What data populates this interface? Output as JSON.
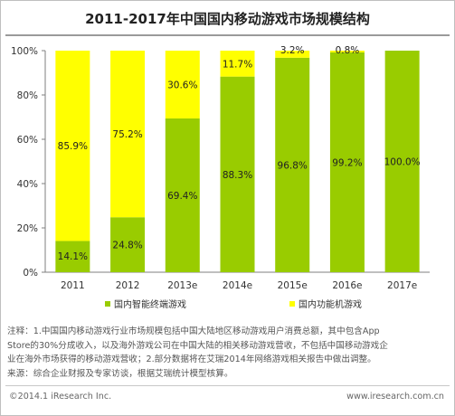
{
  "title": "2011-2017年中国国内移动游戏市场规模结构",
  "chart_data": {
    "type": "bar",
    "stacked": true,
    "categories": [
      "2011",
      "2012",
      "2013e",
      "2014e",
      "2015e",
      "2016e",
      "2017e"
    ],
    "series": [
      {
        "name": "国内智能终端游戏",
        "color": "#99cc00",
        "values": [
          14.1,
          24.8,
          69.4,
          88.3,
          96.8,
          99.2,
          100.0
        ]
      },
      {
        "name": "国内功能机游戏",
        "color": "#ffff00",
        "values": [
          85.9,
          75.2,
          30.6,
          11.7,
          3.2,
          0.8,
          0
        ]
      }
    ],
    "data_labels": {
      "bottom": [
        "14.1%",
        "24.8%",
        "69.4%",
        "88.3%",
        "96.8%",
        "99.2%",
        "100.0%"
      ],
      "top": [
        "85.9%",
        "75.2%",
        "30.6%",
        "11.7%",
        "3.2%",
        "0.8%",
        ""
      ]
    },
    "y_ticks": [
      "0%",
      "20%",
      "40%",
      "60%",
      "80%",
      "100%"
    ],
    "ylim": [
      0,
      100
    ],
    "grid": false,
    "legend_position": "bottom"
  },
  "notes": [
    "注释：1.中国国内移动游戏行业市场规模包括中国大陆地区移动游戏用户消费总额，其中包含App",
    "Store的30%分成收入，以及海外游戏公司在中国大陆的相关移动游戏营收，不包括中国移动游戏企",
    "业在海外市场获得的移动游戏营收；2.部分数据将在艾瑞2014年网络游戏相关报告中做出调整。",
    "来源：综合企业财报及专家访谈，根据艾瑞统计模型核算。"
  ],
  "copyright": "©2014.1 iResearch Inc.",
  "website": "www.iresearch.com.cn"
}
